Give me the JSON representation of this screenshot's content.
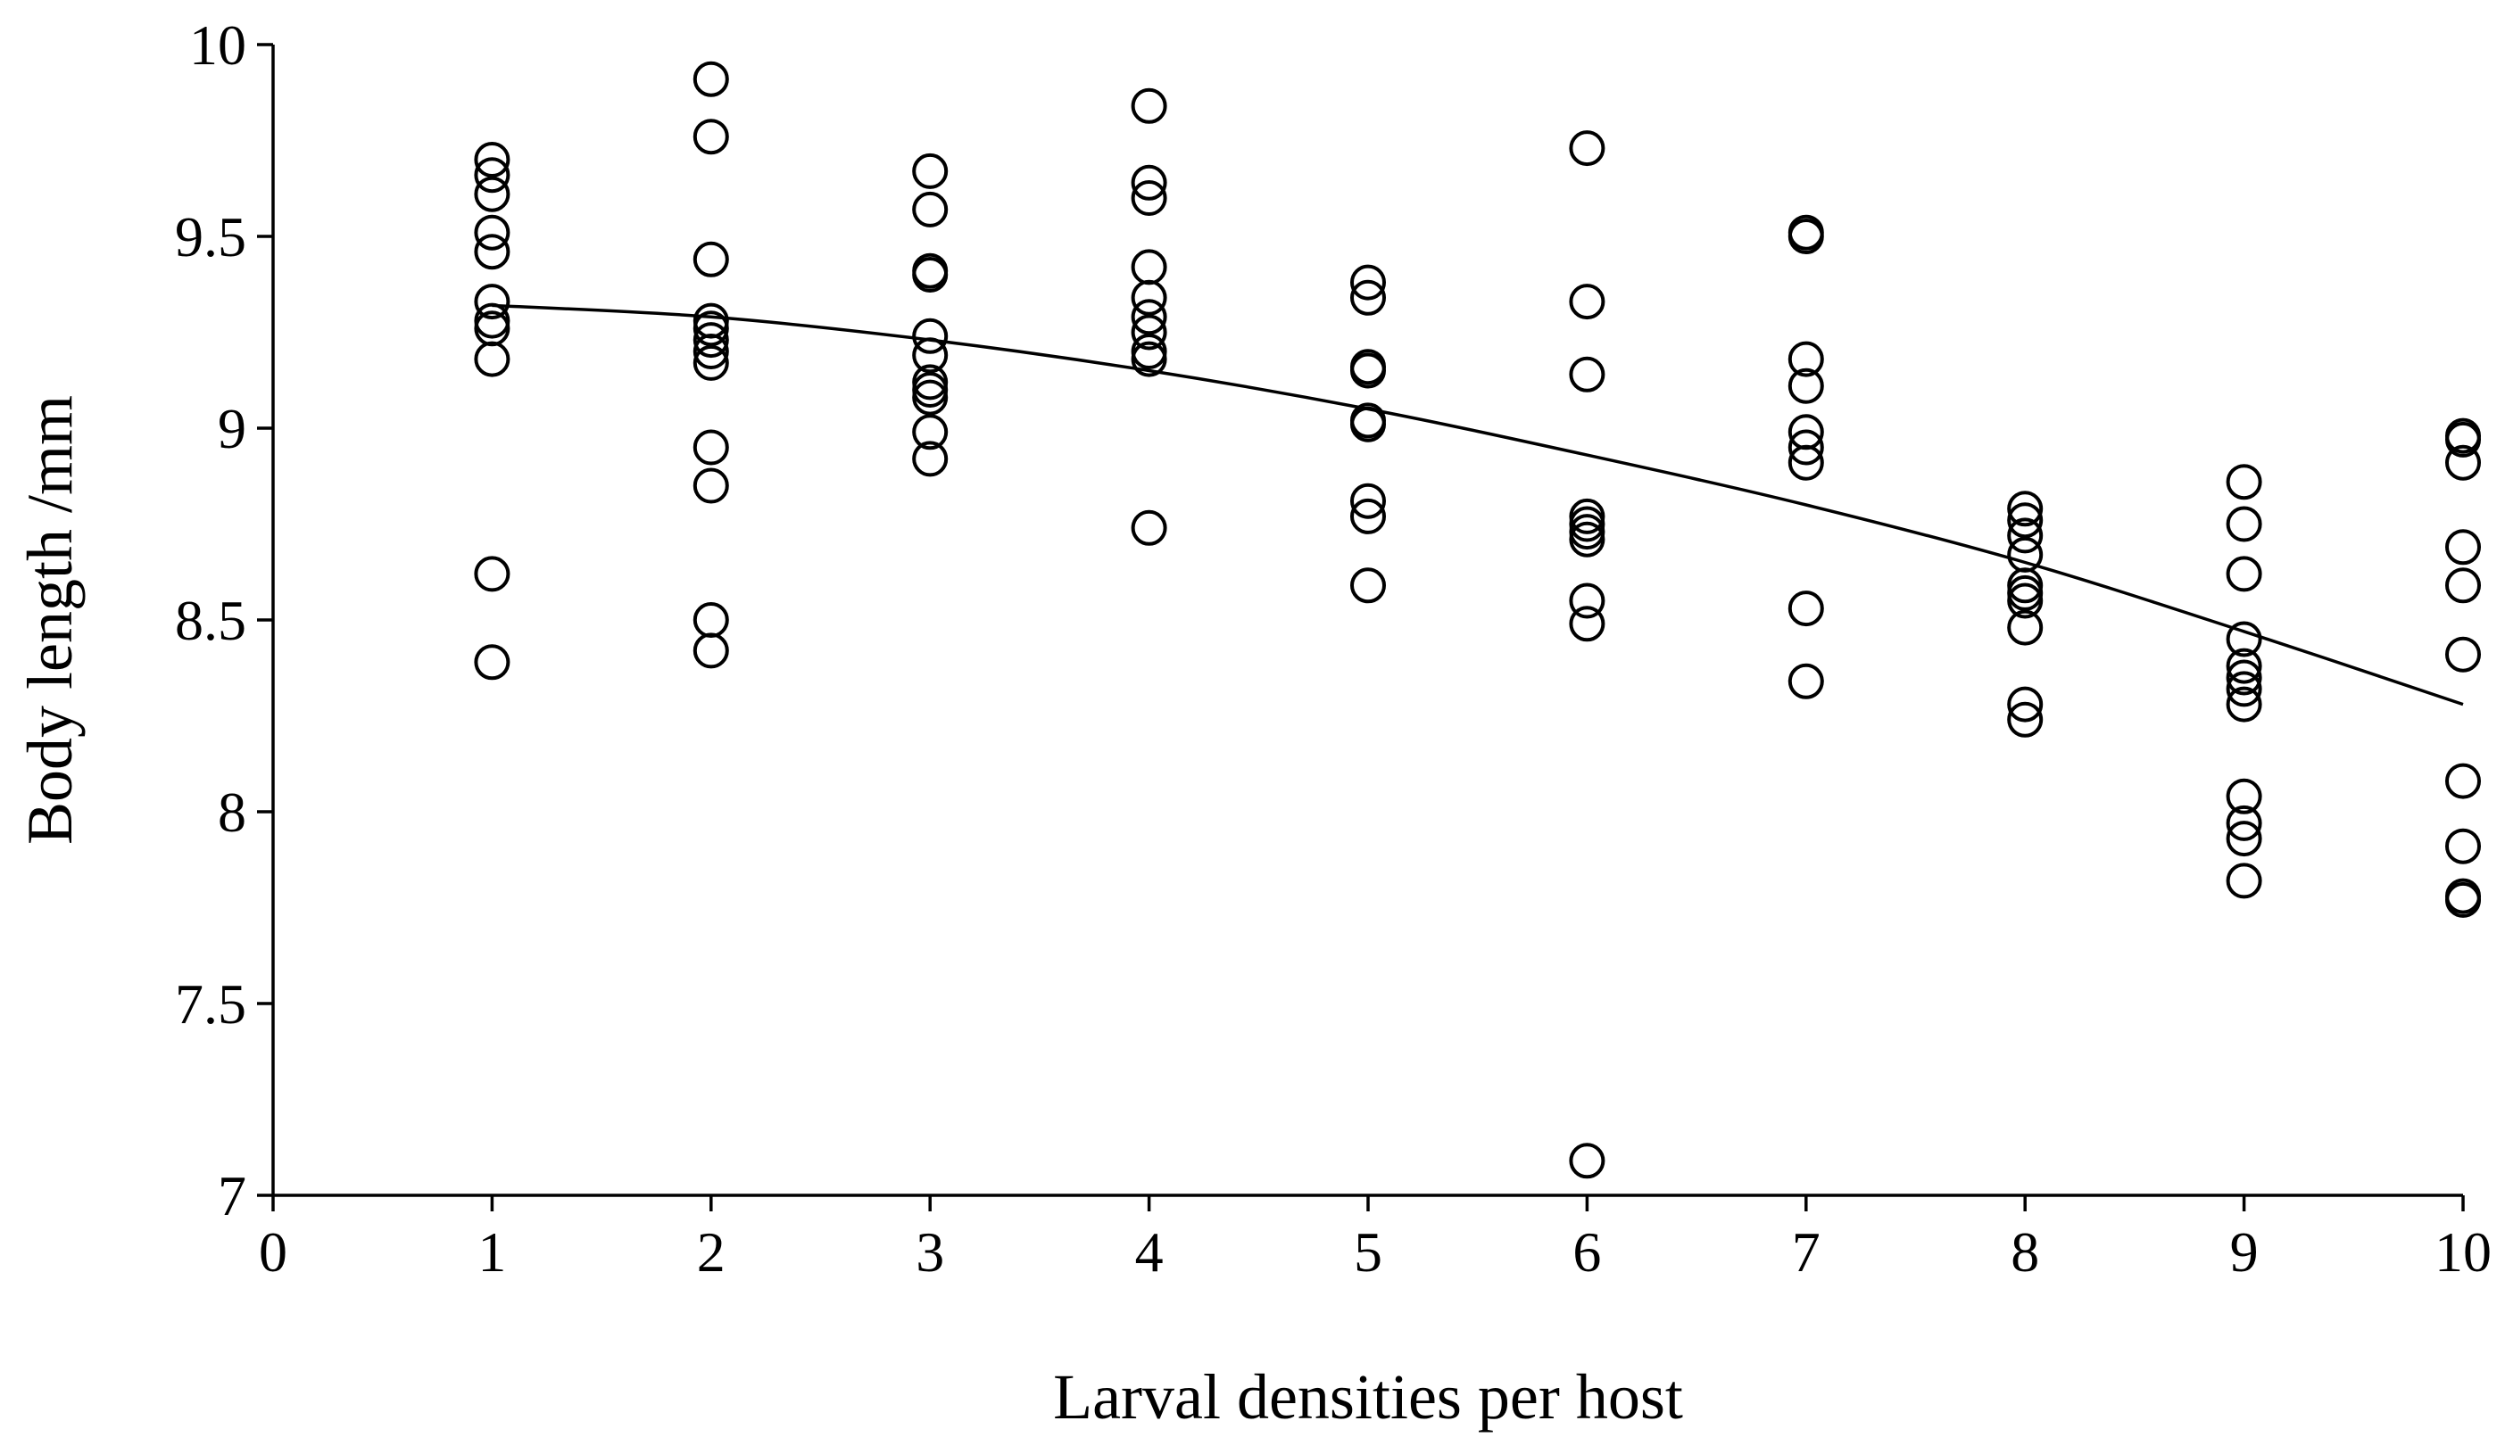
{
  "chart_data": {
    "type": "scatter",
    "xlabel": "Larval densities per host",
    "ylabel": "Body length /mm",
    "xlim": [
      0,
      10
    ],
    "ylim": [
      7,
      10
    ],
    "x_ticks": [
      "0",
      "1",
      "2",
      "3",
      "4",
      "5",
      "6",
      "7",
      "8",
      "9",
      "10"
    ],
    "y_ticks": [
      "7",
      "7.5",
      "8",
      "8.5",
      "9",
      "9.5",
      "10"
    ],
    "grid": false,
    "legend": "none",
    "points": [
      {
        "x": 1,
        "y": 9.7
      },
      {
        "x": 1,
        "y": 9.66
      },
      {
        "x": 1,
        "y": 9.61
      },
      {
        "x": 1,
        "y": 9.51
      },
      {
        "x": 1,
        "y": 9.46
      },
      {
        "x": 1,
        "y": 9.33
      },
      {
        "x": 1,
        "y": 9.28
      },
      {
        "x": 1,
        "y": 9.26
      },
      {
        "x": 1,
        "y": 9.18
      },
      {
        "x": 1,
        "y": 8.62
      },
      {
        "x": 1,
        "y": 8.39
      },
      {
        "x": 2,
        "y": 9.91
      },
      {
        "x": 2,
        "y": 9.76
      },
      {
        "x": 2,
        "y": 9.44
      },
      {
        "x": 2,
        "y": 9.28
      },
      {
        "x": 2,
        "y": 9.26
      },
      {
        "x": 2,
        "y": 9.23
      },
      {
        "x": 2,
        "y": 9.2
      },
      {
        "x": 2,
        "y": 9.17
      },
      {
        "x": 2,
        "y": 8.95
      },
      {
        "x": 2,
        "y": 8.85
      },
      {
        "x": 2,
        "y": 8.5
      },
      {
        "x": 2,
        "y": 8.42
      },
      {
        "x": 3,
        "y": 9.67
      },
      {
        "x": 3,
        "y": 9.57
      },
      {
        "x": 3,
        "y": 9.41
      },
      {
        "x": 3,
        "y": 9.4
      },
      {
        "x": 3,
        "y": 9.24
      },
      {
        "x": 3,
        "y": 9.19
      },
      {
        "x": 3,
        "y": 9.12
      },
      {
        "x": 3,
        "y": 9.1
      },
      {
        "x": 3,
        "y": 9.08
      },
      {
        "x": 3,
        "y": 8.99
      },
      {
        "x": 3,
        "y": 8.92
      },
      {
        "x": 4,
        "y": 9.84
      },
      {
        "x": 4,
        "y": 9.64
      },
      {
        "x": 4,
        "y": 9.6
      },
      {
        "x": 4,
        "y": 9.42
      },
      {
        "x": 4,
        "y": 9.34
      },
      {
        "x": 4,
        "y": 9.29
      },
      {
        "x": 4,
        "y": 9.25
      },
      {
        "x": 4,
        "y": 9.2
      },
      {
        "x": 4,
        "y": 9.18
      },
      {
        "x": 4,
        "y": 8.74
      },
      {
        "x": 5,
        "y": 9.38
      },
      {
        "x": 5,
        "y": 9.34
      },
      {
        "x": 5,
        "y": 9.16
      },
      {
        "x": 5,
        "y": 9.15
      },
      {
        "x": 5,
        "y": 9.02
      },
      {
        "x": 5,
        "y": 9.01
      },
      {
        "x": 5,
        "y": 8.81
      },
      {
        "x": 5,
        "y": 8.77
      },
      {
        "x": 5,
        "y": 8.59
      },
      {
        "x": 6,
        "y": 9.73
      },
      {
        "x": 6,
        "y": 9.33
      },
      {
        "x": 6,
        "y": 9.14
      },
      {
        "x": 6,
        "y": 8.77
      },
      {
        "x": 6,
        "y": 8.75
      },
      {
        "x": 6,
        "y": 8.73
      },
      {
        "x": 6,
        "y": 8.71
      },
      {
        "x": 6,
        "y": 8.55
      },
      {
        "x": 6,
        "y": 8.49
      },
      {
        "x": 6,
        "y": 7.09
      },
      {
        "x": 7,
        "y": 9.51
      },
      {
        "x": 7,
        "y": 9.5
      },
      {
        "x": 7,
        "y": 9.18
      },
      {
        "x": 7,
        "y": 9.11
      },
      {
        "x": 7,
        "y": 8.99
      },
      {
        "x": 7,
        "y": 8.95
      },
      {
        "x": 7,
        "y": 8.91
      },
      {
        "x": 7,
        "y": 8.53
      },
      {
        "x": 7,
        "y": 8.34
      },
      {
        "x": 8,
        "y": 8.79
      },
      {
        "x": 8,
        "y": 8.76
      },
      {
        "x": 8,
        "y": 8.72
      },
      {
        "x": 8,
        "y": 8.67
      },
      {
        "x": 8,
        "y": 8.59
      },
      {
        "x": 8,
        "y": 8.57
      },
      {
        "x": 8,
        "y": 8.55
      },
      {
        "x": 8,
        "y": 8.48
      },
      {
        "x": 8,
        "y": 8.28
      },
      {
        "x": 8,
        "y": 8.24
      },
      {
        "x": 9,
        "y": 8.86
      },
      {
        "x": 9,
        "y": 8.75
      },
      {
        "x": 9,
        "y": 8.62
      },
      {
        "x": 9,
        "y": 8.45
      },
      {
        "x": 9,
        "y": 8.38
      },
      {
        "x": 9,
        "y": 8.35
      },
      {
        "x": 9,
        "y": 8.32
      },
      {
        "x": 9,
        "y": 8.28
      },
      {
        "x": 9,
        "y": 8.04
      },
      {
        "x": 9,
        "y": 7.97
      },
      {
        "x": 9,
        "y": 7.93
      },
      {
        "x": 9,
        "y": 7.82
      },
      {
        "x": 10,
        "y": 8.98
      },
      {
        "x": 10,
        "y": 8.97
      },
      {
        "x": 10,
        "y": 8.91
      },
      {
        "x": 10,
        "y": 8.69
      },
      {
        "x": 10,
        "y": 8.59
      },
      {
        "x": 10,
        "y": 8.41
      },
      {
        "x": 10,
        "y": 8.08
      },
      {
        "x": 10,
        "y": 7.91
      },
      {
        "x": 10,
        "y": 7.78
      },
      {
        "x": 10,
        "y": 7.77
      }
    ],
    "trendline": {
      "type": "polynomial",
      "x": [
        1,
        2,
        3,
        4,
        5,
        6,
        7,
        8,
        9,
        10
      ],
      "y": [
        9.32,
        9.29,
        9.23,
        9.15,
        9.05,
        8.93,
        8.8,
        8.65,
        8.47,
        8.28
      ]
    }
  }
}
